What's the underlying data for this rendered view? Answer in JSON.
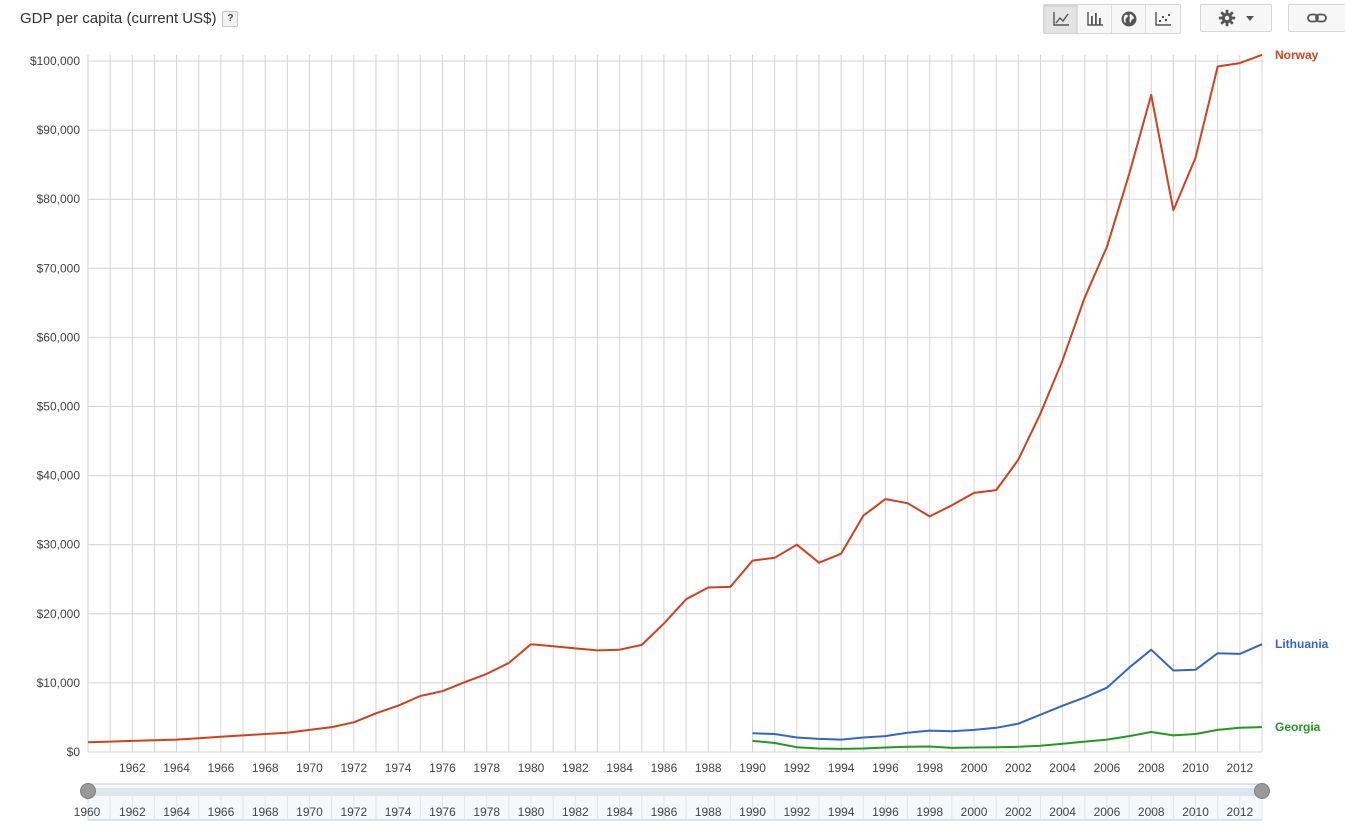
{
  "header": {
    "title": "GDP per capita (current US$)",
    "help_label": "?"
  },
  "toolbar": {
    "buttons": [
      {
        "icon": "line-chart-icon",
        "active": true
      },
      {
        "icon": "bar-chart-icon",
        "active": false
      },
      {
        "icon": "globe-icon",
        "active": false
      },
      {
        "icon": "scatter-icon",
        "active": false
      }
    ],
    "settings_icon": "gear-icon",
    "dropdown_icon": "caret-down-icon",
    "link_icon": "link-icon"
  },
  "colors": {
    "norway": "#d2401e",
    "lithuania": "#3366cc",
    "georgia": "#229a22",
    "grid": "#d4d4d4",
    "axis_text": "#444444"
  },
  "chart_data": {
    "type": "line",
    "title": "GDP per capita (current US$)",
    "xlim": [
      1960,
      2013
    ],
    "ylim": [
      0,
      100000
    ],
    "y_ticks": [
      "$0",
      "$10,000",
      "$20,000",
      "$30,000",
      "$40,000",
      "$50,000",
      "$60,000",
      "$70,000",
      "$80,000",
      "$90,000",
      "$100,000"
    ],
    "x_ticks": [
      "1962",
      "1964",
      "1966",
      "1968",
      "1970",
      "1972",
      "1974",
      "1976",
      "1978",
      "1980",
      "1982",
      "1984",
      "1986",
      "1988",
      "1990",
      "1992",
      "1994",
      "1996",
      "1998",
      "2000",
      "2002",
      "2004",
      "2006",
      "2008",
      "2010",
      "2012"
    ],
    "grid": true,
    "legend": "end-of-line labels",
    "series": [
      {
        "name": "Norway",
        "color": "#d2401e",
        "x": [
          1960,
          1961,
          1962,
          1963,
          1964,
          1965,
          1966,
          1967,
          1968,
          1969,
          1970,
          1971,
          1972,
          1973,
          1974,
          1975,
          1976,
          1977,
          1978,
          1979,
          1980,
          1981,
          1982,
          1983,
          1984,
          1985,
          1986,
          1987,
          1988,
          1989,
          1990,
          1991,
          1992,
          1993,
          1994,
          1995,
          1996,
          1997,
          1998,
          1999,
          2000,
          2001,
          2002,
          2003,
          2004,
          2005,
          2006,
          2007,
          2008,
          2009,
          2010,
          2011,
          2012,
          2013
        ],
        "values": [
          1400,
          1500,
          1600,
          1700,
          1800,
          2000,
          2200,
          2400,
          2600,
          2800,
          3200,
          3600,
          4300,
          5600,
          6700,
          8100,
          8800,
          10100,
          11300,
          12900,
          15600,
          15300,
          15000,
          14700,
          14800,
          15500,
          18600,
          22100,
          23800,
          23900,
          27700,
          28100,
          30000,
          27400,
          28700,
          34200,
          36600,
          36000,
          34100,
          35700,
          37500,
          37900,
          42300,
          49000,
          56700,
          65800,
          73100,
          83600,
          95100,
          78400,
          86000,
          99200,
          99700,
          100900
        ]
      },
      {
        "name": "Lithuania",
        "color": "#3366cc",
        "x": [
          1990,
          1991,
          1992,
          1993,
          1994,
          1995,
          1996,
          1997,
          1998,
          1999,
          2000,
          2001,
          2002,
          2003,
          2004,
          2005,
          2006,
          2007,
          2008,
          2009,
          2010,
          2011,
          2012,
          2013
        ],
        "values": [
          2700,
          2600,
          2100,
          1900,
          1800,
          2100,
          2300,
          2800,
          3100,
          3000,
          3200,
          3500,
          4100,
          5400,
          6700,
          7900,
          9300,
          12200,
          14800,
          11800,
          11900,
          14300,
          14200,
          15600
        ]
      },
      {
        "name": "Georgia",
        "color": "#229a22",
        "x": [
          1990,
          1991,
          1992,
          1993,
          1994,
          1995,
          1996,
          1997,
          1998,
          1999,
          2000,
          2001,
          2002,
          2003,
          2004,
          2005,
          2006,
          2007,
          2008,
          2009,
          2010,
          2011,
          2012,
          2013
        ],
        "values": [
          1600,
          1300,
          700,
          500,
          450,
          500,
          650,
          750,
          800,
          600,
          650,
          700,
          750,
          900,
          1200,
          1500,
          1800,
          2300,
          2900,
          2400,
          2600,
          3200,
          3500,
          3600
        ]
      }
    ]
  },
  "range_slider": {
    "start_label": "1960",
    "labels": [
      "1962",
      "1964",
      "1966",
      "1968",
      "1970",
      "1972",
      "1974",
      "1976",
      "1978",
      "1980",
      "1982",
      "1984",
      "1986",
      "1988",
      "1990",
      "1992",
      "1994",
      "1996",
      "1998",
      "2000",
      "2002",
      "2004",
      "2006",
      "2008",
      "2010",
      "2012"
    ],
    "range_start": 1960,
    "range_end": 2013
  }
}
